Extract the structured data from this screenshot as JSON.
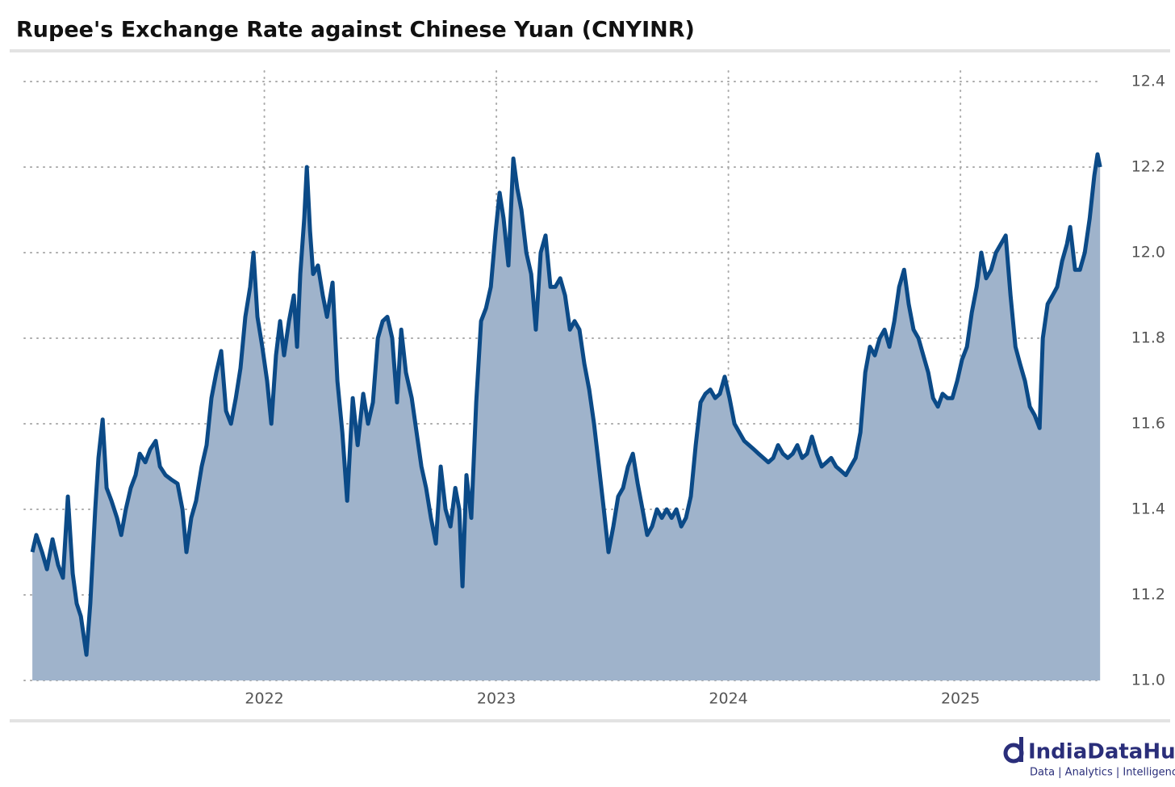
{
  "chart_data": {
    "type": "area",
    "title": "Rupee's Exchange Rate against Chinese Yuan (CNYINR)",
    "color": "#0b4a87",
    "fill_color": "#9fb3cb",
    "x": [
      2021.0,
      2021.017,
      2021.042,
      2021.063,
      2021.087,
      2021.111,
      2021.132,
      2021.153,
      2021.174,
      2021.191,
      2021.209,
      2021.233,
      2021.25,
      2021.271,
      2021.285,
      2021.303,
      2021.32,
      2021.341,
      2021.365,
      2021.383,
      2021.403,
      2021.424,
      2021.445,
      2021.463,
      2021.487,
      2021.508,
      2021.532,
      2021.55,
      2021.574,
      2021.598,
      2021.626,
      2021.647,
      2021.664,
      2021.685,
      2021.706,
      2021.73,
      2021.751,
      2021.772,
      2021.793,
      2021.814,
      2021.835,
      2021.856,
      2021.877,
      2021.897,
      2021.918,
      2021.939,
      2021.953,
      2021.97,
      2021.991,
      2022.012,
      2022.03,
      2022.05,
      2022.068,
      2022.085,
      2022.106,
      2022.127,
      2022.141,
      2022.155,
      2022.172,
      2022.183,
      2022.197,
      2022.21,
      2022.231,
      2022.252,
      2022.27,
      2022.294,
      2022.315,
      2022.336,
      2022.357,
      2022.381,
      2022.402,
      2022.426,
      2022.447,
      2022.468,
      2022.489,
      2022.51,
      2022.53,
      2022.551,
      2022.572,
      2022.59,
      2022.61,
      2022.635,
      2022.656,
      2022.677,
      2022.697,
      2022.718,
      2022.739,
      2022.76,
      2022.781,
      2022.802,
      2022.823,
      2022.84,
      2022.854,
      2022.871,
      2022.892,
      2022.913,
      2022.934,
      2022.955,
      2022.976,
      2022.997,
      2023.014,
      2023.031,
      2023.052,
      2023.073,
      2023.09,
      2023.108,
      2023.129,
      2023.15,
      2023.17,
      2023.191,
      2023.212,
      2023.233,
      2023.254,
      2023.275,
      2023.296,
      2023.317,
      2023.337,
      2023.358,
      2023.379,
      2023.4,
      2023.421,
      2023.442,
      2023.463,
      2023.483,
      2023.504,
      2023.525,
      2023.546,
      2023.567,
      2023.588,
      2023.609,
      2023.63,
      2023.65,
      2023.671,
      2023.692,
      2023.713,
      2023.734,
      2023.755,
      2023.776,
      2023.797,
      2023.817,
      2023.838,
      2023.859,
      2023.88,
      2023.901,
      2023.922,
      2023.943,
      2023.963,
      2023.984,
      2024.005,
      2024.026,
      2024.047,
      2024.068,
      2024.089,
      2024.11,
      2024.13,
      2024.151,
      2024.172,
      2024.193,
      2024.214,
      2024.235,
      2024.256,
      2024.277,
      2024.297,
      2024.318,
      2024.339,
      2024.36,
      2024.381,
      2024.402,
      2024.423,
      2024.443,
      2024.464,
      2024.485,
      2024.506,
      2024.527,
      2024.548,
      2024.569,
      2024.59,
      2024.61,
      2024.631,
      2024.652,
      2024.673,
      2024.694,
      2024.715,
      2024.736,
      2024.757,
      2024.777,
      2024.798,
      2024.819,
      2024.84,
      2024.861,
      2024.882,
      2024.903,
      2024.923,
      2024.944,
      2024.965,
      2024.986,
      2025.007,
      2025.028,
      2025.049,
      2025.07,
      2025.09,
      2025.111,
      2025.132,
      2025.153,
      2025.174,
      2025.195,
      2025.216,
      2025.237,
      2025.257,
      2025.278,
      2025.299,
      2025.32,
      2025.341,
      2025.355,
      2025.376,
      2025.397,
      2025.417,
      2025.438,
      2025.459,
      2025.473,
      2025.494,
      2025.515,
      2025.536,
      2025.557,
      2025.577,
      2025.591,
      2025.602
    ],
    "values": [
      11.3,
      11.34,
      11.3,
      11.26,
      11.33,
      11.27,
      11.24,
      11.43,
      11.25,
      11.18,
      11.15,
      11.06,
      11.18,
      11.4,
      11.52,
      11.61,
      11.45,
      11.42,
      11.38,
      11.34,
      11.4,
      11.45,
      11.48,
      11.53,
      11.51,
      11.54,
      11.56,
      11.5,
      11.48,
      11.47,
      11.46,
      11.4,
      11.3,
      11.38,
      11.42,
      11.5,
      11.55,
      11.66,
      11.72,
      11.77,
      11.63,
      11.6,
      11.66,
      11.73,
      11.85,
      11.92,
      12.0,
      11.85,
      11.78,
      11.7,
      11.6,
      11.76,
      11.84,
      11.76,
      11.84,
      11.9,
      11.78,
      11.95,
      12.08,
      12.2,
      12.05,
      11.95,
      11.97,
      11.9,
      11.85,
      11.93,
      11.7,
      11.58,
      11.42,
      11.66,
      11.55,
      11.67,
      11.6,
      11.65,
      11.8,
      11.84,
      11.85,
      11.8,
      11.65,
      11.82,
      11.72,
      11.66,
      11.58,
      11.5,
      11.45,
      11.38,
      11.32,
      11.5,
      11.4,
      11.36,
      11.45,
      11.4,
      11.22,
      11.48,
      11.38,
      11.65,
      11.84,
      11.87,
      11.92,
      12.05,
      12.14,
      12.08,
      11.97,
      12.22,
      12.15,
      12.1,
      12.0,
      11.95,
      11.82,
      12.0,
      12.04,
      11.92,
      11.92,
      11.94,
      11.9,
      11.82,
      11.84,
      11.82,
      11.74,
      11.68,
      11.6,
      11.5,
      11.4,
      11.3,
      11.36,
      11.43,
      11.45,
      11.5,
      11.53,
      11.46,
      11.4,
      11.34,
      11.36,
      11.4,
      11.38,
      11.4,
      11.38,
      11.4,
      11.36,
      11.38,
      11.43,
      11.55,
      11.65,
      11.67,
      11.68,
      11.66,
      11.67,
      11.71,
      11.66,
      11.6,
      11.58,
      11.56,
      11.55,
      11.54,
      11.53,
      11.52,
      11.51,
      11.52,
      11.55,
      11.53,
      11.52,
      11.53,
      11.55,
      11.52,
      11.53,
      11.57,
      11.53,
      11.5,
      11.51,
      11.52,
      11.5,
      11.49,
      11.48,
      11.5,
      11.52,
      11.58,
      11.72,
      11.78,
      11.76,
      11.8,
      11.82,
      11.78,
      11.84,
      11.92,
      11.96,
      11.88,
      11.82,
      11.8,
      11.76,
      11.72,
      11.66,
      11.64,
      11.67,
      11.66,
      11.66,
      11.7,
      11.75,
      11.78,
      11.86,
      11.92,
      12.0,
      11.94,
      11.96,
      12.0,
      12.02,
      12.04,
      11.9,
      11.78,
      11.74,
      11.7,
      11.64,
      11.62,
      11.59,
      11.8,
      11.88,
      11.9,
      11.92,
      11.98,
      12.02,
      12.06,
      11.96,
      11.96,
      12.0,
      12.08,
      12.18,
      12.23,
      12.2
    ],
    "xlim": [
      2020.965,
      2025.643
    ],
    "xticks": [
      2022,
      2023,
      2024,
      2025
    ],
    "ylim": [
      11.0,
      12.4
    ],
    "yticks": [
      {
        "value": 11,
        "label": "11.0"
      },
      11.2,
      11.4,
      11.6,
      11.8,
      {
        "value": 12,
        "label": "12.0"
      },
      12.2,
      12.4
    ],
    "grid": true
  },
  "brand": {
    "name": "IndiaDataHub",
    "tagline": "Data | Analytics | Intelligence"
  }
}
